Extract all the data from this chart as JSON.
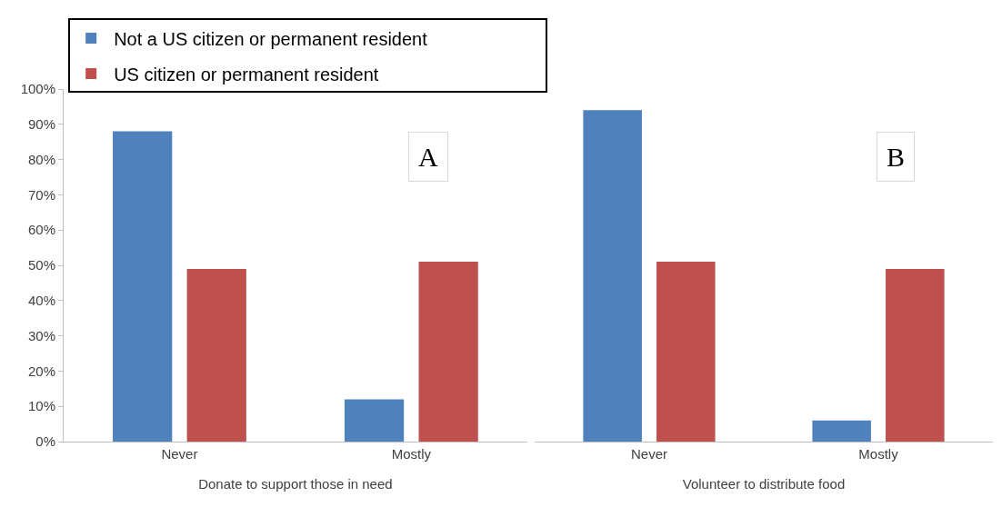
{
  "chart_data": [
    {
      "type": "bar",
      "categories": [
        "Never",
        "Mostly"
      ],
      "xlabel": "Donate to support those in need",
      "annotations": [
        "A"
      ],
      "legend": "top",
      "grid": false,
      "ylim": [
        0,
        100
      ],
      "yticks": [
        {
          "value": 0,
          "label": "0%"
        },
        {
          "value": 10,
          "label": "10%"
        },
        {
          "value": 20,
          "label": "20%"
        },
        {
          "value": 30,
          "label": "30%"
        },
        {
          "value": 40,
          "label": "40%"
        },
        {
          "value": 50,
          "label": "50%"
        },
        {
          "value": 60,
          "label": "60%"
        },
        {
          "value": 70,
          "label": "70%"
        },
        {
          "value": 80,
          "label": "80%"
        },
        {
          "value": 90,
          "label": "90%"
        },
        {
          "value": 100,
          "label": "100%"
        }
      ],
      "series": [
        {
          "name": "Not a US citizen or permanent resident",
          "color": "#4f81bd",
          "values": [
            88,
            12
          ]
        },
        {
          "name": "US citizen or permanent resident",
          "color": "#c0504d",
          "values": [
            49,
            51
          ]
        }
      ]
    },
    {
      "type": "bar",
      "categories": [
        "Never",
        "Mostly"
      ],
      "xlabel": "Volunteer to distribute food",
      "annotations": [
        "B"
      ],
      "grid": false,
      "tick_labels": "x",
      "ylim": [
        0,
        100
      ],
      "yticks": [
        {
          "value": 0,
          "label": null
        },
        {
          "value": 10,
          "label": null
        },
        {
          "value": 20,
          "label": null
        },
        {
          "value": 30,
          "label": null
        },
        {
          "value": 40,
          "label": null
        },
        {
          "value": 50,
          "label": null
        },
        {
          "value": 60,
          "label": null
        },
        {
          "value": 70,
          "label": null
        },
        {
          "value": 80,
          "label": null
        },
        {
          "value": 90,
          "label": null
        },
        {
          "value": 100,
          "label": null
        }
      ],
      "series": [
        {
          "color": "#4f81bd",
          "values": [
            94,
            6
          ]
        },
        {
          "color": "#c0504d",
          "values": [
            51,
            49
          ]
        }
      ]
    }
  ]
}
